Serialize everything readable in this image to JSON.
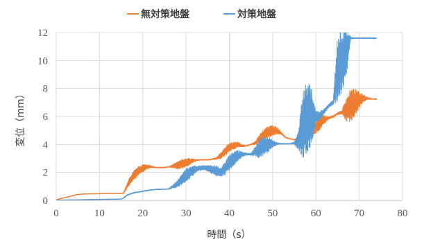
{
  "chart_data": {
    "type": "line",
    "xlabel": "時間（s）",
    "ylabel": "変位（mm）",
    "xlim": [
      0,
      80
    ],
    "ylim": [
      0,
      12
    ],
    "xticks": [
      0,
      10,
      20,
      30,
      40,
      50,
      60,
      70,
      80
    ],
    "yticks": [
      0,
      2,
      4,
      6,
      8,
      10,
      12
    ],
    "grid": "vertical and horizontal",
    "legend_position": "top",
    "series": [
      {
        "name": "無対策地盤",
        "color": "#ED7D31",
        "x": [
          0,
          2,
          4,
          4.5,
          6,
          8,
          10,
          12,
          14,
          15.5,
          16,
          17,
          18,
          19,
          20,
          21,
          22,
          23,
          24,
          25,
          26,
          27,
          28,
          29,
          30,
          31,
          32,
          33,
          34,
          35,
          36,
          37,
          38,
          39,
          40,
          41,
          42,
          43,
          44,
          45,
          46,
          47,
          48,
          49,
          50,
          51,
          52,
          53,
          54,
          55,
          56,
          57,
          58,
          59,
          60,
          61,
          62,
          63,
          64,
          65,
          66,
          67,
          68,
          69,
          70,
          71,
          72,
          73,
          74
        ],
        "y": [
          0.05,
          0.2,
          0.35,
          0.4,
          0.45,
          0.47,
          0.48,
          0.49,
          0.5,
          0.5,
          0.8,
          1.4,
          1.8,
          2.1,
          2.3,
          2.4,
          2.4,
          2.35,
          2.35,
          2.35,
          2.4,
          2.45,
          2.5,
          2.6,
          2.7,
          2.8,
          2.85,
          2.9,
          2.9,
          2.9,
          2.95,
          3.0,
          3.2,
          3.5,
          3.8,
          3.9,
          4.0,
          3.9,
          3.9,
          4.0,
          4.1,
          4.4,
          4.7,
          4.9,
          5.0,
          5.0,
          4.8,
          4.5,
          4.4,
          4.35,
          4.3,
          4.3,
          4.3,
          5.0,
          5.2,
          5.6,
          5.8,
          5.9,
          6.0,
          6.2,
          6.3,
          6.5,
          6.8,
          7.0,
          7.2,
          7.3,
          7.3,
          7.25,
          7.25
        ],
        "amplitude": [
          0,
          0,
          0,
          0,
          0,
          0,
          0,
          0,
          0,
          0,
          0.15,
          0.3,
          0.35,
          0.35,
          0.3,
          0.2,
          0.08,
          0.05,
          0.05,
          0.05,
          0.05,
          0.15,
          0.3,
          0.35,
          0.35,
          0.25,
          0.1,
          0.05,
          0.05,
          0.05,
          0.05,
          0.08,
          0.25,
          0.35,
          0.35,
          0.3,
          0.2,
          0.1,
          0.05,
          0.05,
          0.15,
          0.35,
          0.4,
          0.45,
          0.4,
          0.3,
          0.1,
          0.05,
          0.05,
          0.05,
          0.05,
          0.05,
          0.05,
          0.3,
          0.45,
          0.6,
          0.3,
          0.1,
          0.1,
          0.1,
          0.15,
          0.9,
          1.2,
          1.0,
          0.6,
          0.3,
          0.1,
          0.05,
          0.05
        ]
      },
      {
        "name": "対策地盤",
        "color": "#5B9BD5",
        "x": [
          0,
          2,
          4,
          6,
          8,
          10,
          12,
          14,
          15,
          15.5,
          16,
          17,
          18,
          19,
          20,
          21,
          22,
          23,
          24,
          25,
          26,
          27,
          28,
          29,
          30,
          31,
          32,
          33,
          34,
          35,
          36,
          37,
          38,
          39,
          40,
          41,
          42,
          43,
          44,
          45,
          46,
          47,
          48,
          49,
          50,
          51,
          52,
          53,
          54,
          55,
          56,
          57,
          58,
          59,
          60,
          61,
          62,
          63,
          64,
          65,
          66,
          67,
          68,
          69,
          70,
          71,
          72,
          73,
          74
        ],
        "y": [
          0.02,
          0.03,
          0.04,
          0.05,
          0.06,
          0.07,
          0.08,
          0.09,
          0.1,
          0.15,
          0.3,
          0.45,
          0.55,
          0.6,
          0.65,
          0.7,
          0.75,
          0.78,
          0.8,
          0.8,
          0.82,
          1.0,
          1.2,
          1.5,
          1.8,
          2.0,
          2.2,
          2.3,
          2.35,
          2.3,
          2.2,
          2.1,
          2.0,
          2.3,
          2.7,
          3.0,
          3.2,
          3.3,
          3.3,
          3.3,
          3.5,
          3.7,
          3.9,
          4.0,
          4.05,
          4.05,
          4.05,
          4.05,
          4.05,
          4.1,
          4.3,
          5.5,
          6.0,
          6.0,
          6.0,
          6.1,
          6.4,
          6.8,
          7.0,
          9.5,
          10.0,
          10.5,
          11.6,
          11.6,
          11.6,
          11.6,
          11.6,
          11.6,
          11.6
        ],
        "amplitude": [
          0,
          0,
          0,
          0,
          0,
          0,
          0,
          0,
          0,
          0,
          0.05,
          0.05,
          0.05,
          0.05,
          0.05,
          0.05,
          0.05,
          0.05,
          0.05,
          0.05,
          0.05,
          0.15,
          0.3,
          0.4,
          0.5,
          0.45,
          0.3,
          0.2,
          0.2,
          0.25,
          0.35,
          0.4,
          0.35,
          0.5,
          0.6,
          0.55,
          0.4,
          0.2,
          0.1,
          0.1,
          0.35,
          0.7,
          0.7,
          0.6,
          0.3,
          0.1,
          0.05,
          0.05,
          0.05,
          0.1,
          0.8,
          2.5,
          2.7,
          2.0,
          0.5,
          0.3,
          0.2,
          0.15,
          0.2,
          2.5,
          2.3,
          2.0,
          0.1,
          0.05,
          0.05,
          0.05,
          0.05,
          0.05,
          0.05
        ]
      }
    ]
  }
}
